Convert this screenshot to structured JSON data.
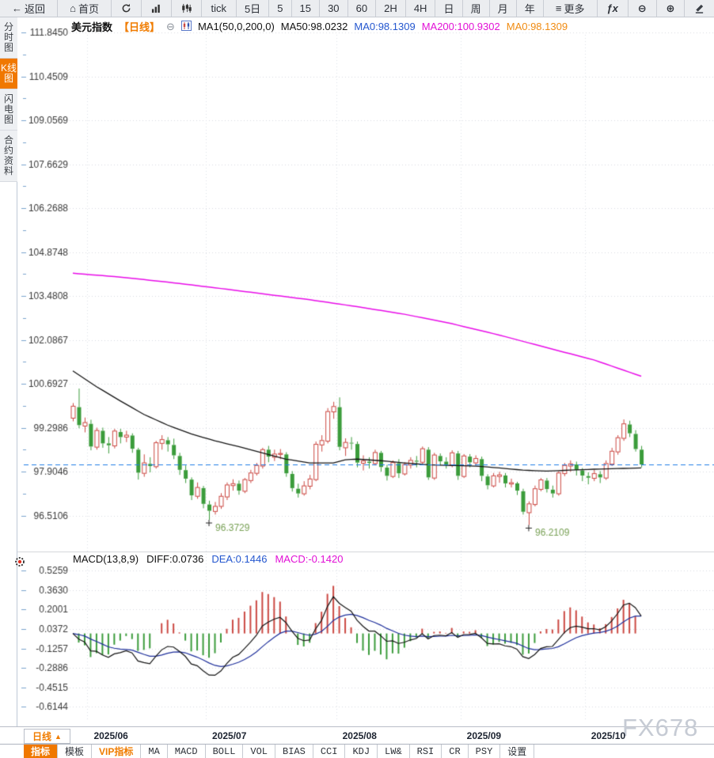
{
  "icons": {
    "back": "←",
    "home": "⌂",
    "menu": "≡",
    "fx": "ƒx",
    "zoom_out": "⊖",
    "zoom_in": "⊕",
    "collapse": "⊖",
    "arrow_up": "▲"
  },
  "toolbar": {
    "items": [
      {
        "name": "back-button",
        "icon": "back",
        "label": "返回"
      },
      {
        "name": "home-button",
        "icon": "home",
        "label": "首页"
      },
      {
        "name": "refresh-button",
        "icon": "refresh"
      },
      {
        "name": "line-chart-button",
        "icon": "bar-chart"
      },
      {
        "name": "kline-chart-button",
        "icon": "candlestick"
      },
      {
        "name": "period-tick-button",
        "label": "tick"
      },
      {
        "name": "period-5d-button",
        "label": "5日"
      },
      {
        "name": "period-5m-button",
        "label": "5"
      },
      {
        "name": "period-15m-button",
        "label": "15"
      },
      {
        "name": "period-30m-button",
        "label": "30"
      },
      {
        "name": "period-60m-button",
        "label": "60"
      },
      {
        "name": "period-2h-button",
        "label": "2H"
      },
      {
        "name": "period-4h-button",
        "label": "4H"
      },
      {
        "name": "period-day-button",
        "label": "日"
      },
      {
        "name": "period-week-button",
        "label": "周"
      },
      {
        "name": "period-month-button",
        "label": "月"
      },
      {
        "name": "period-year-button",
        "label": "年"
      },
      {
        "name": "more-button",
        "icon": "menu",
        "label": "更多"
      },
      {
        "name": "fx-indicator-button",
        "icon": "fx"
      },
      {
        "name": "zoom-out-button",
        "icon": "zoom_out"
      },
      {
        "name": "zoom-in-button",
        "icon": "zoom_in"
      },
      {
        "name": "draw-button",
        "icon": "pencil"
      }
    ]
  },
  "sidebar": {
    "items": [
      {
        "name": "sidebar-item-time-chart",
        "label": "分时图",
        "active": false
      },
      {
        "name": "sidebar-item-kline-chart",
        "label": "K线图",
        "active": true
      },
      {
        "name": "sidebar-item-flash-chart",
        "label": "闪电图",
        "active": false
      },
      {
        "name": "sidebar-item-contract-info",
        "label": "合约资料",
        "active": false
      }
    ]
  },
  "chart_header": {
    "symbol": "美元指数",
    "period_tag": "【日线】",
    "ma_params": "MA1(50,0,200,0)",
    "ma50_label": "MA50:98.0232",
    "ma0_blue_label": "MA0:98.1309",
    "ma200_label": "MA200:100.9302",
    "ma0_orange_label": "MA0:98.1309"
  },
  "macd_header": {
    "title": "MACD(13,8,9)",
    "diff_label": "DIFF:0.0736",
    "dea_label": "DEA:0.1446",
    "macd_label": "MACD:-0.1420"
  },
  "bottom": {
    "period_button": "日线",
    "watermark": "FX678",
    "tabs": [
      {
        "name": "tab-indicator",
        "label": "指标",
        "state": "active"
      },
      {
        "name": "tab-template",
        "label": "模板",
        "state": ""
      },
      {
        "name": "tab-vip-indicator",
        "label": "VIP指标",
        "state": "vip"
      },
      {
        "name": "tab-ma",
        "label": "MA",
        "state": ""
      },
      {
        "name": "tab-macd",
        "label": "MACD",
        "state": ""
      },
      {
        "name": "tab-boll",
        "label": "BOLL",
        "state": ""
      },
      {
        "name": "tab-vol",
        "label": "VOL",
        "state": ""
      },
      {
        "name": "tab-bias",
        "label": "BIAS",
        "state": ""
      },
      {
        "name": "tab-cci",
        "label": "CCI",
        "state": ""
      },
      {
        "name": "tab-kdj",
        "label": "KDJ",
        "state": ""
      },
      {
        "name": "tab-lwr",
        "label": "LW&",
        "state": ""
      },
      {
        "name": "tab-rsi",
        "label": "RSI",
        "state": ""
      },
      {
        "name": "tab-cr",
        "label": "CR",
        "state": ""
      },
      {
        "name": "tab-psy",
        "label": "PSY",
        "state": ""
      },
      {
        "name": "tab-settings",
        "label": "设置",
        "state": ""
      }
    ]
  },
  "colors": {
    "accent_orange": "#f07800",
    "up_red": "#cb4842",
    "down_green": "#3b9c3b",
    "ma50": "#141414",
    "ma200": "#e80ce8",
    "price_line_blue": "#1e7ce6",
    "dea_blue": "#1e2f9b",
    "diff_black": "#141414",
    "annotation_green": "#78a055",
    "axis_tick_blue": "#7aa3cc",
    "grid_gray": "#d7dae1",
    "label_gray": "#3a3a3a"
  },
  "chart_data": [
    {
      "type": "candlestick",
      "symbol": "美元指数",
      "period": "日线",
      "yticks": [
        {
          "label": "111.8450",
          "value": 111.845
        },
        {
          "label": "110.4509",
          "value": 110.4509
        },
        {
          "label": "109.0569",
          "value": 109.0569
        },
        {
          "label": "107.6629",
          "value": 107.6629
        },
        {
          "label": "106.2688",
          "value": 106.2688
        },
        {
          "label": "104.8748",
          "value": 104.8748
        },
        {
          "label": "103.4808",
          "value": 103.4808
        },
        {
          "label": "102.0867",
          "value": 102.0867
        },
        {
          "label": "100.6927",
          "value": 100.6927
        },
        {
          "label": "99.2986",
          "value": 99.2986
        },
        {
          "label": "97.9046",
          "value": 97.9046
        },
        {
          "label": "96.5106",
          "value": 96.5106
        }
      ],
      "price_line": {
        "value": 98.1309
      },
      "month_ticks": [
        {
          "label": "2025/06",
          "index": 3
        },
        {
          "label": "2025/07",
          "index": 23
        },
        {
          "label": "2025/08",
          "index": 45
        },
        {
          "label": "2025/09",
          "index": 66
        },
        {
          "label": "2025/10",
          "index": 87
        }
      ],
      "annotations": [
        {
          "text": "96.3729",
          "index": 23,
          "value": 96.3729
        },
        {
          "text": "96.2109",
          "index": 77,
          "value": 96.2109
        }
      ],
      "candles": [
        [
          99.6,
          100.08,
          99.5,
          99.98
        ],
        [
          99.95,
          100.54,
          99.28,
          99.38
        ],
        [
          99.35,
          99.62,
          99.15,
          99.46
        ],
        [
          99.42,
          99.55,
          98.58,
          98.7
        ],
        [
          98.68,
          99.3,
          98.6,
          99.21
        ],
        [
          99.2,
          99.3,
          98.66,
          98.8
        ],
        [
          98.8,
          99.0,
          98.48,
          98.74
        ],
        [
          98.72,
          99.26,
          98.64,
          99.19
        ],
        [
          99.16,
          99.26,
          98.8,
          99.0
        ],
        [
          99.0,
          99.2,
          98.84,
          99.06
        ],
        [
          99.05,
          99.12,
          98.5,
          98.63
        ],
        [
          98.6,
          98.66,
          97.65,
          97.87
        ],
        [
          97.85,
          98.45,
          97.74,
          98.18
        ],
        [
          98.15,
          98.36,
          97.88,
          98.08
        ],
        [
          98.06,
          98.88,
          98.0,
          98.82
        ],
        [
          98.8,
          99.06,
          98.6,
          98.92
        ],
        [
          98.9,
          99.0,
          98.54,
          98.77
        ],
        [
          98.75,
          98.95,
          98.3,
          98.42
        ],
        [
          98.4,
          98.5,
          97.8,
          97.96
        ],
        [
          97.95,
          98.1,
          97.54,
          97.68
        ],
        [
          97.65,
          97.72,
          97.0,
          97.15
        ],
        [
          97.12,
          97.56,
          97.04,
          97.4
        ],
        [
          97.38,
          97.45,
          96.74,
          96.88
        ],
        [
          96.86,
          96.98,
          96.3729,
          96.66
        ],
        [
          96.64,
          96.94,
          96.54,
          96.8
        ],
        [
          96.8,
          97.22,
          96.72,
          97.12
        ],
        [
          97.1,
          97.56,
          97.0,
          97.48
        ],
        [
          97.46,
          97.66,
          97.3,
          97.52
        ],
        [
          97.52,
          97.62,
          97.17,
          97.3
        ],
        [
          97.28,
          97.7,
          97.22,
          97.65
        ],
        [
          97.62,
          97.96,
          97.54,
          97.86
        ],
        [
          97.85,
          98.18,
          97.78,
          98.1
        ],
        [
          98.08,
          98.66,
          98.0,
          98.6
        ],
        [
          98.6,
          98.72,
          98.2,
          98.38
        ],
        [
          98.36,
          98.6,
          98.24,
          98.46
        ],
        [
          98.45,
          98.62,
          98.3,
          98.48
        ],
        [
          98.45,
          98.52,
          97.74,
          97.85
        ],
        [
          97.83,
          97.92,
          97.27,
          97.38
        ],
        [
          97.36,
          97.52,
          97.08,
          97.21
        ],
        [
          97.2,
          97.6,
          97.14,
          97.45
        ],
        [
          97.44,
          97.8,
          97.34,
          97.67
        ],
        [
          97.65,
          98.86,
          97.6,
          98.77
        ],
        [
          98.75,
          99.06,
          98.54,
          98.89
        ],
        [
          98.87,
          99.92,
          98.8,
          99.81
        ],
        [
          99.8,
          100.12,
          99.58,
          99.97
        ],
        [
          99.95,
          100.26,
          98.58,
          98.69
        ],
        [
          98.66,
          98.96,
          98.4,
          98.83
        ],
        [
          98.82,
          99.0,
          98.6,
          98.8
        ],
        [
          98.78,
          98.86,
          98.04,
          98.19
        ],
        [
          98.17,
          98.42,
          97.94,
          98.24
        ],
        [
          98.22,
          98.36,
          98.0,
          98.18
        ],
        [
          98.16,
          98.6,
          98.1,
          98.51
        ],
        [
          98.5,
          98.56,
          97.9,
          98.05
        ],
        [
          98.03,
          98.12,
          97.62,
          97.77
        ],
        [
          97.75,
          98.26,
          97.7,
          98.19
        ],
        [
          98.17,
          98.3,
          97.7,
          97.85
        ],
        [
          97.83,
          98.2,
          97.78,
          98.13
        ],
        [
          98.11,
          98.36,
          98.0,
          98.26
        ],
        [
          98.25,
          98.4,
          98.04,
          98.22
        ],
        [
          98.2,
          98.7,
          98.14,
          98.63
        ],
        [
          98.6,
          98.68,
          97.64,
          97.72
        ],
        [
          97.7,
          98.5,
          97.64,
          98.43
        ],
        [
          98.4,
          98.48,
          98.1,
          98.23
        ],
        [
          98.22,
          98.36,
          98.0,
          98.13
        ],
        [
          98.11,
          98.58,
          98.04,
          98.5
        ],
        [
          98.48,
          98.56,
          97.64,
          97.77
        ],
        [
          97.75,
          98.46,
          97.7,
          98.4
        ],
        [
          98.38,
          98.46,
          98.04,
          98.2
        ],
        [
          98.18,
          98.42,
          98.1,
          98.32
        ],
        [
          98.3,
          98.38,
          97.6,
          97.77
        ],
        [
          97.75,
          97.82,
          97.34,
          97.47
        ],
        [
          97.45,
          97.86,
          97.4,
          97.77
        ],
        [
          97.75,
          97.9,
          97.55,
          97.8
        ],
        [
          97.78,
          97.86,
          97.4,
          97.53
        ],
        [
          97.51,
          97.68,
          97.4,
          97.55
        ],
        [
          97.53,
          97.58,
          97.16,
          97.3
        ],
        [
          97.28,
          97.36,
          96.54,
          96.63
        ],
        [
          96.6,
          96.96,
          96.2109,
          96.88
        ],
        [
          96.86,
          97.46,
          96.8,
          97.36
        ],
        [
          97.34,
          97.7,
          97.28,
          97.64
        ],
        [
          97.62,
          97.7,
          97.24,
          97.35
        ],
        [
          97.33,
          97.46,
          97.08,
          97.21
        ],
        [
          97.2,
          97.92,
          97.14,
          97.86
        ],
        [
          97.84,
          98.18,
          97.76,
          98.1
        ],
        [
          98.08,
          98.26,
          97.9,
          98.15
        ],
        [
          98.13,
          98.22,
          97.78,
          97.96
        ],
        [
          97.94,
          98.02,
          97.6,
          97.78
        ],
        [
          97.76,
          97.88,
          97.5,
          97.71
        ],
        [
          97.69,
          97.96,
          97.6,
          97.84
        ],
        [
          97.82,
          97.92,
          97.54,
          97.72
        ],
        [
          97.7,
          98.26,
          97.64,
          98.16
        ],
        [
          98.14,
          98.66,
          98.08,
          98.55
        ],
        [
          98.53,
          99.06,
          98.44,
          98.98
        ],
        [
          98.96,
          99.56,
          98.88,
          99.42
        ],
        [
          99.4,
          99.52,
          99.0,
          99.12
        ],
        [
          99.1,
          99.22,
          98.54,
          98.62
        ],
        [
          98.6,
          98.72,
          98.04,
          98.13
        ]
      ],
      "ma50_points": [
        [
          0,
          101.1
        ],
        [
          4,
          100.6
        ],
        [
          8,
          100.15
        ],
        [
          12,
          99.72
        ],
        [
          16,
          99.38
        ],
        [
          20,
          99.1
        ],
        [
          24,
          98.88
        ],
        [
          28,
          98.7
        ],
        [
          32,
          98.5
        ],
        [
          36,
          98.3
        ],
        [
          40,
          98.18
        ],
        [
          44,
          98.18
        ],
        [
          46,
          98.28
        ],
        [
          48,
          98.3
        ],
        [
          52,
          98.25
        ],
        [
          56,
          98.18
        ],
        [
          60,
          98.12
        ],
        [
          64,
          98.1
        ],
        [
          68,
          98.08
        ],
        [
          72,
          98.02
        ],
        [
          76,
          97.95
        ],
        [
          80,
          97.92
        ],
        [
          84,
          97.95
        ],
        [
          88,
          97.98
        ],
        [
          92,
          98.0
        ],
        [
          96,
          98.02
        ]
      ],
      "ma200_points": [
        [
          0,
          104.2
        ],
        [
          8,
          104.08
        ],
        [
          16,
          103.92
        ],
        [
          24,
          103.74
        ],
        [
          32,
          103.55
        ],
        [
          40,
          103.36
        ],
        [
          48,
          103.14
        ],
        [
          56,
          102.9
        ],
        [
          64,
          102.6
        ],
        [
          72,
          102.24
        ],
        [
          80,
          101.84
        ],
        [
          88,
          101.45
        ],
        [
          96,
          100.93
        ]
      ]
    },
    {
      "type": "macd",
      "params_label": "MACD(13,8,9)",
      "diff": 0.0736,
      "dea": 0.1446,
      "macd": -0.142,
      "yticks": [
        {
          "label": "0.5259",
          "value": 0.5259
        },
        {
          "label": "0.3630",
          "value": 0.363
        },
        {
          "label": "0.2001",
          "value": 0.2001
        },
        {
          "label": "0.0372",
          "value": 0.0372
        },
        {
          "label": "-0.1257",
          "value": -0.1257
        },
        {
          "label": "-0.2886",
          "value": -0.2886
        },
        {
          "label": "-0.4515",
          "value": -0.4515
        },
        {
          "label": "-0.6144",
          "value": -0.6144
        }
      ]
    }
  ]
}
